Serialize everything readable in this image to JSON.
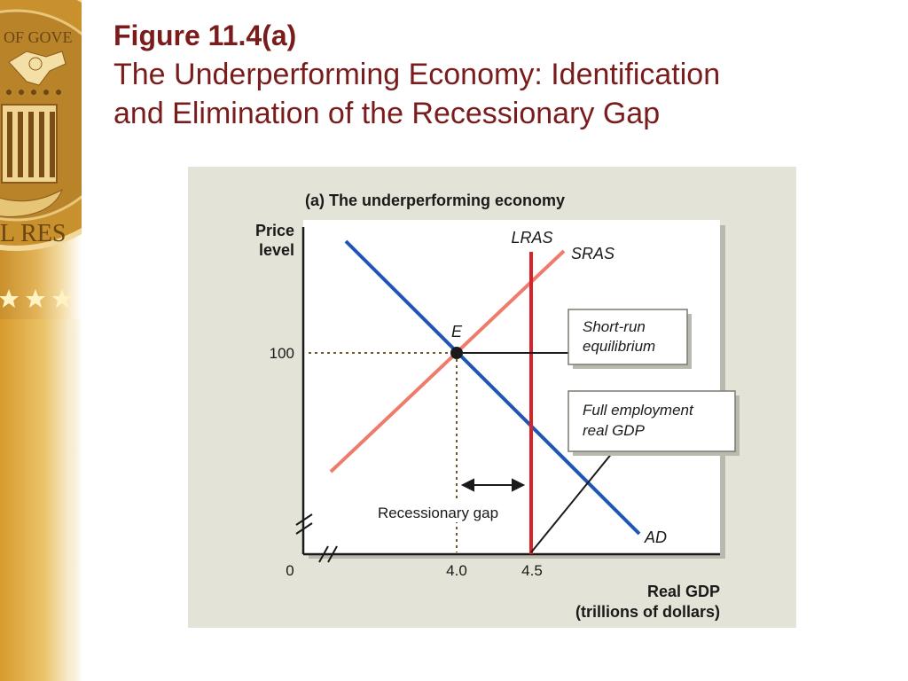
{
  "slide": {
    "title_figure": "Figure 11.4(a)",
    "title_line1": "The Underperforming Economy: Identification",
    "title_line2": "and Elimination of the Recessionary Gap"
  },
  "seal": {
    "text_top": "OF GOVE",
    "text_side": "L RES"
  },
  "diagram": {
    "panel_title": "(a) The underperforming economy",
    "y_axis_label_line1": "Price",
    "y_axis_label_line2": "level",
    "x_axis_label_line1": "Real GDP",
    "x_axis_label_line2": "(trillions of dollars)",
    "y_tick_100": "100",
    "x_tick_0": "0",
    "x_tick_4": "4.0",
    "x_tick_45": "4.5",
    "curve_lras": "LRAS",
    "curve_sras": "SRAS",
    "curve_ad": "AD",
    "point_e": "E",
    "callout_short_run_line1": "Short-run",
    "callout_short_run_line2": "equilibrium",
    "callout_full_employment_line1": "Full employment",
    "callout_full_employment_line2": "real GDP",
    "gap_label": "Recessionary gap",
    "colors": {
      "ad": "#1f56b5",
      "sras": "#ef7b6c",
      "lras": "#d8222a",
      "title": "#7a1c1c",
      "panel_bg": "#e4e3d7"
    }
  }
}
